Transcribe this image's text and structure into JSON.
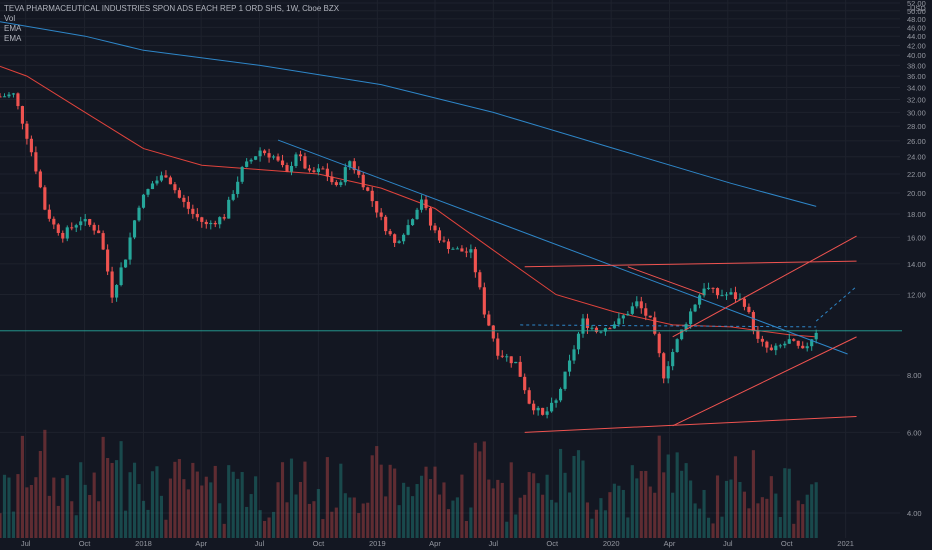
{
  "header": {
    "symbol_line": "TEVA PHARMACEUTICAL INDUSTRIES SPON ADS EACH REP 1 ORD SHS, 1W, Cboe BZX",
    "indicators": [
      "Vol",
      "EMA",
      "EMA"
    ]
  },
  "colors": {
    "background": "#131722",
    "up": "#26a69a",
    "down": "#ef5350",
    "ema_fast": "#e0433c",
    "ema_slow": "#2e86c8",
    "trendline": "#ef5350",
    "last_price_line": "#26a69a"
  },
  "chart_data": {
    "type": "candlestick",
    "title": "TEVA PHARMACEUTICAL INDUSTRIES SPON ADS EACH REP 1 ORD SHS, 1W, Cboe BZX",
    "currency": "USD",
    "y_ticks": [
      "52.00",
      "50.00",
      "48.00",
      "46.00",
      "44.00",
      "42.00",
      "40.00",
      "38.00",
      "36.00",
      "34.00",
      "32.00",
      "30.00",
      "28.00",
      "26.00",
      "24.00",
      "22.00",
      "20.00",
      "18.00",
      "16.00",
      "14.00",
      "12.00",
      "8.00",
      "6.00",
      "4.00"
    ],
    "x_ticks": [
      {
        "label": "Jul",
        "date": "2017-07-01"
      },
      {
        "label": "Oct",
        "date": "2017-10-01"
      },
      {
        "label": "2018",
        "date": "2018-01-01"
      },
      {
        "label": "Apr",
        "date": "2018-04-01"
      },
      {
        "label": "Jul",
        "date": "2018-07-01"
      },
      {
        "label": "Oct",
        "date": "2018-10-01"
      },
      {
        "label": "2019",
        "date": "2019-01-01"
      },
      {
        "label": "Apr",
        "date": "2019-04-01"
      },
      {
        "label": "Jul",
        "date": "2019-07-01"
      },
      {
        "label": "Oct",
        "date": "2019-10-01"
      },
      {
        "label": "2020",
        "date": "2020-01-01"
      },
      {
        "label": "Apr",
        "date": "2020-04-01"
      },
      {
        "label": "Jul",
        "date": "2020-07-01"
      },
      {
        "label": "Oct",
        "date": "2020-10-01"
      },
      {
        "label": "2021",
        "date": "2021-01-01"
      }
    ],
    "last_price": 10.0,
    "last_price_label": "",
    "close_anchors": [
      [
        "2017-05-22",
        32.5
      ],
      [
        "2017-06-12",
        32.8
      ],
      [
        "2017-07-31",
        18.5
      ],
      [
        "2017-08-14",
        17.0
      ],
      [
        "2017-08-28",
        16.2
      ],
      [
        "2017-09-25",
        17.5
      ],
      [
        "2017-10-23",
        16.5
      ],
      [
        "2017-11-13",
        12.0
      ],
      [
        "2017-12-04",
        14.5
      ],
      [
        "2017-12-25",
        18.9
      ],
      [
        "2018-01-15",
        21.0
      ],
      [
        "2018-02-05",
        22.0
      ],
      [
        "2018-02-26",
        19.5
      ],
      [
        "2018-03-19",
        18.0
      ],
      [
        "2018-04-09",
        17.0
      ],
      [
        "2018-05-07",
        17.8
      ],
      [
        "2018-06-04",
        22.5
      ],
      [
        "2018-07-02",
        24.8
      ],
      [
        "2018-07-23",
        24.0
      ],
      [
        "2018-08-13",
        22.0
      ],
      [
        "2018-08-27",
        24.5
      ],
      [
        "2018-09-17",
        22.0
      ],
      [
        "2018-10-08",
        22.5
      ],
      [
        "2018-10-29",
        20.5
      ],
      [
        "2018-11-19",
        23.5
      ],
      [
        "2018-12-10",
        21.0
      ],
      [
        "2019-01-07",
        17.5
      ],
      [
        "2019-01-28",
        15.5
      ],
      [
        "2019-02-18",
        17.0
      ],
      [
        "2019-03-11",
        19.5
      ],
      [
        "2019-03-25",
        17.0
      ],
      [
        "2019-04-15",
        15.5
      ],
      [
        "2019-05-06",
        15.0
      ],
      [
        "2019-05-27",
        14.8
      ],
      [
        "2019-06-17",
        11.0
      ],
      [
        "2019-07-08",
        9.0
      ],
      [
        "2019-08-05",
        8.5
      ],
      [
        "2019-08-26",
        7.0
      ],
      [
        "2019-09-16",
        6.5
      ],
      [
        "2019-10-07",
        7.0
      ],
      [
        "2019-10-28",
        8.5
      ],
      [
        "2019-11-18",
        10.5
      ],
      [
        "2019-12-09",
        10.0
      ],
      [
        "2020-01-13",
        10.5
      ],
      [
        "2020-02-10",
        11.5
      ],
      [
        "2020-03-02",
        10.5
      ],
      [
        "2020-03-23",
        8.0
      ],
      [
        "2020-04-13",
        9.5
      ],
      [
        "2020-05-04",
        11.0
      ],
      [
        "2020-05-25",
        12.5
      ],
      [
        "2020-06-15",
        12.0
      ],
      [
        "2020-07-06",
        12.0
      ],
      [
        "2020-07-27",
        11.5
      ],
      [
        "2020-08-17",
        9.5
      ],
      [
        "2020-09-07",
        9.0
      ],
      [
        "2020-10-05",
        9.5
      ],
      [
        "2020-10-26",
        9.0
      ],
      [
        "2020-11-16",
        10.0
      ]
    ],
    "ema_fast": [
      [
        "2017-05-22",
        37.8
      ],
      [
        "2017-07-03",
        36.0
      ],
      [
        "2017-10-02",
        30.0
      ],
      [
        "2018-01-01",
        25.0
      ],
      [
        "2018-04-02",
        23.0
      ],
      [
        "2018-07-02",
        22.5
      ],
      [
        "2018-10-01",
        22.0
      ],
      [
        "2019-01-07",
        20.5
      ],
      [
        "2019-04-01",
        18.5
      ],
      [
        "2019-07-01",
        15.0
      ],
      [
        "2019-10-07",
        12.0
      ],
      [
        "2020-01-06",
        11.0
      ],
      [
        "2020-04-06",
        10.3
      ],
      [
        "2020-07-06",
        10.2
      ],
      [
        "2020-10-05",
        9.8
      ],
      [
        "2020-11-16",
        9.7
      ]
    ],
    "ema_slow": [
      [
        "2017-05-22",
        47.3
      ],
      [
        "2017-10-02",
        44.0
      ],
      [
        "2018-01-01",
        41.0
      ],
      [
        "2018-07-02",
        38.0
      ],
      [
        "2019-01-07",
        34.5
      ],
      [
        "2019-07-01",
        30.0
      ],
      [
        "2020-01-06",
        25.0
      ],
      [
        "2020-07-06",
        21.0
      ],
      [
        "2020-11-16",
        18.7
      ]
    ],
    "trendlines": [
      {
        "from": [
          "2018-07-30",
          26.1
        ],
        "to": [
          "2021-01-04",
          8.9
        ]
      },
      {
        "from": [
          "2019-08-19",
          13.8
        ],
        "to": [
          "2021-01-18",
          14.2
        ]
      },
      {
        "from": [
          "2019-08-19",
          6.0
        ],
        "to": [
          "2021-01-18",
          6.5
        ]
      },
      {
        "from": [
          "2020-04-06",
          6.2
        ],
        "to": [
          "2021-01-18",
          9.7
        ]
      },
      {
        "from": [
          "2020-04-06",
          9.7
        ],
        "to": [
          "2021-01-18",
          16.1
        ]
      },
      {
        "from": [
          "2020-01-27",
          13.8
        ],
        "to": [
          "2020-05-25",
          12.0
        ]
      }
    ],
    "dashed_lines": [
      {
        "from": [
          "2019-08-12",
          10.3
        ],
        "to": [
          "2020-11-16",
          10.2
        ]
      },
      {
        "from": [
          "2020-11-16",
          10.5
        ],
        "to": [
          "2021-01-18",
          12.5
        ]
      }
    ],
    "x_start": "2017-05-22",
    "x_end": "2021-02-08",
    "y_scale": "log"
  }
}
